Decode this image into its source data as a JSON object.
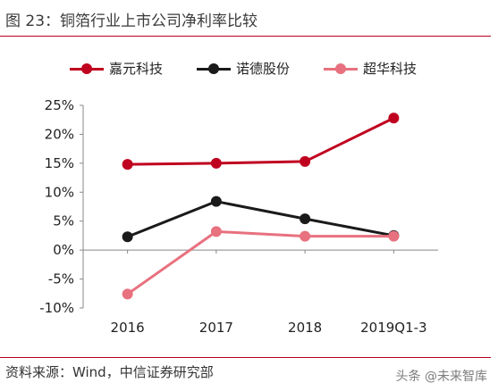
{
  "figure": {
    "title": "图 23：铜箔行业上市公司净利率比较",
    "source": "资料来源：Wind，中信证券研究部",
    "watermark": "头条 @未来智库"
  },
  "colors": {
    "rule": "#b5001a",
    "series": [
      "#c0001f",
      "#1a1a1a",
      "#e8717f"
    ]
  },
  "chart_data": {
    "type": "line",
    "categories": [
      "2016",
      "2017",
      "2018",
      "2019Q1-3"
    ],
    "series": [
      {
        "name": "嘉元科技",
        "values": [
          14.8,
          15.0,
          15.3,
          22.8
        ]
      },
      {
        "name": "诺德股份",
        "values": [
          2.3,
          8.4,
          5.4,
          2.5
        ]
      },
      {
        "name": "超华科技",
        "values": [
          -7.6,
          3.2,
          2.4,
          2.4
        ]
      }
    ],
    "yticks": [
      "-10%",
      "-5%",
      "0%",
      "5%",
      "10%",
      "15%",
      "20%",
      "25%"
    ],
    "ylim": [
      -10,
      25
    ],
    "ystep": 5,
    "legend_position": "top",
    "grid": false
  }
}
